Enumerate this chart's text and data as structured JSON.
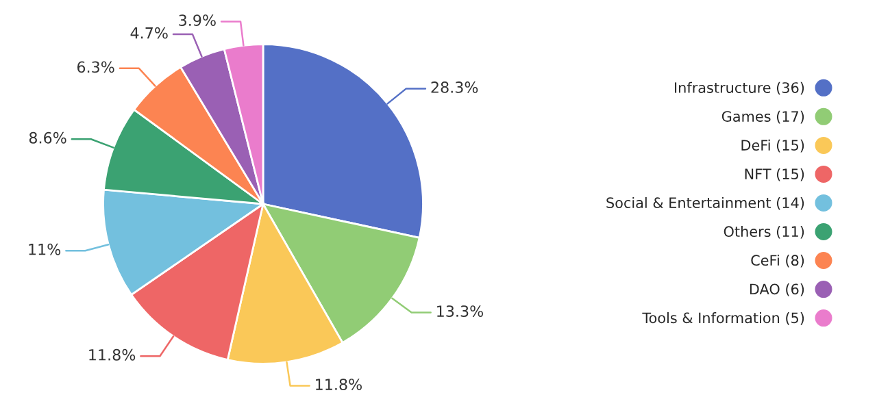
{
  "chart_data": {
    "type": "pie",
    "categories": [
      "Infrastructure (36)",
      "Games (17)",
      "DeFi (15)",
      "NFT (15)",
      "Social & Entertainment (14)",
      "Others (11)",
      "CeFi (8)",
      "DAO (6)",
      "Tools & Information (5)"
    ],
    "values": [
      28.3,
      13.3,
      11.8,
      11.8,
      11,
      8.6,
      6.3,
      4.7,
      3.9
    ],
    "value_labels": [
      "28.3%",
      "13.3%",
      "11.8%",
      "11.8%",
      "11%",
      "8.6%",
      "6.3%",
      "4.7%",
      "3.9%"
    ],
    "colors": [
      "#5470c6",
      "#91cc75",
      "#fac858",
      "#ee6666",
      "#73c0de",
      "#3ba272",
      "#fc8452",
      "#9a60b4",
      "#ea7ccc"
    ],
    "legend": "right"
  }
}
